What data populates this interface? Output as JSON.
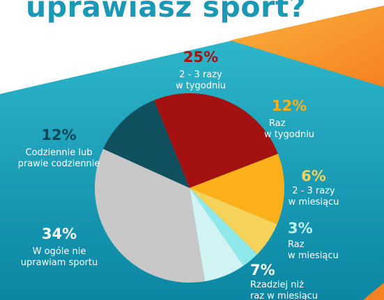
{
  "header": {
    "title": "uprawiasz sport?"
  },
  "colors": {
    "bg_light": "#2eb8cc",
    "bg_dark": "#0f8aa6",
    "white_band": "#ffffff",
    "orange_band": "#f7941d",
    "orange_light": "#fbb040"
  },
  "chart_data": {
    "type": "pie",
    "slices": [
      {
        "percent": "25%",
        "value": 25,
        "label_lines": [
          "2 - 3 razy",
          "w tygodniu"
        ],
        "color": "#a31111",
        "pct_color": "#a31111"
      },
      {
        "percent": "12%",
        "value": 12,
        "label_lines": [
          "Raz",
          "w tygodniu"
        ],
        "color": "#fdb019",
        "pct_color": "#fdb019"
      },
      {
        "percent": "6%",
        "value": 6,
        "label_lines": [
          "2 - 3 razy",
          "w miesiącu"
        ],
        "color": "#f6d35a",
        "pct_color": "#f6d35a"
      },
      {
        "percent": "3%",
        "value": 3,
        "label_lines": [
          "Raz",
          "w miesiącu"
        ],
        "color": "#8fe8ea",
        "pct_color": "#bdf2f2"
      },
      {
        "percent": "7%",
        "value": 7,
        "label_lines": [
          "Rzadziej niż",
          "raz w miesiącu"
        ],
        "color": "#d2f3f3",
        "pct_color": "#ffffff"
      },
      {
        "percent": "34%",
        "value": 34,
        "label_lines": [
          "W ogóle nie",
          "uprawiam sportu"
        ],
        "color": "#c8c8c8",
        "pct_color": "#ffffff"
      },
      {
        "percent": "12%",
        "value": 12,
        "label_lines": [
          "Codziennie lub",
          "prawie codziennie"
        ],
        "color": "#10505e",
        "pct_color": "#0d4754"
      }
    ]
  }
}
